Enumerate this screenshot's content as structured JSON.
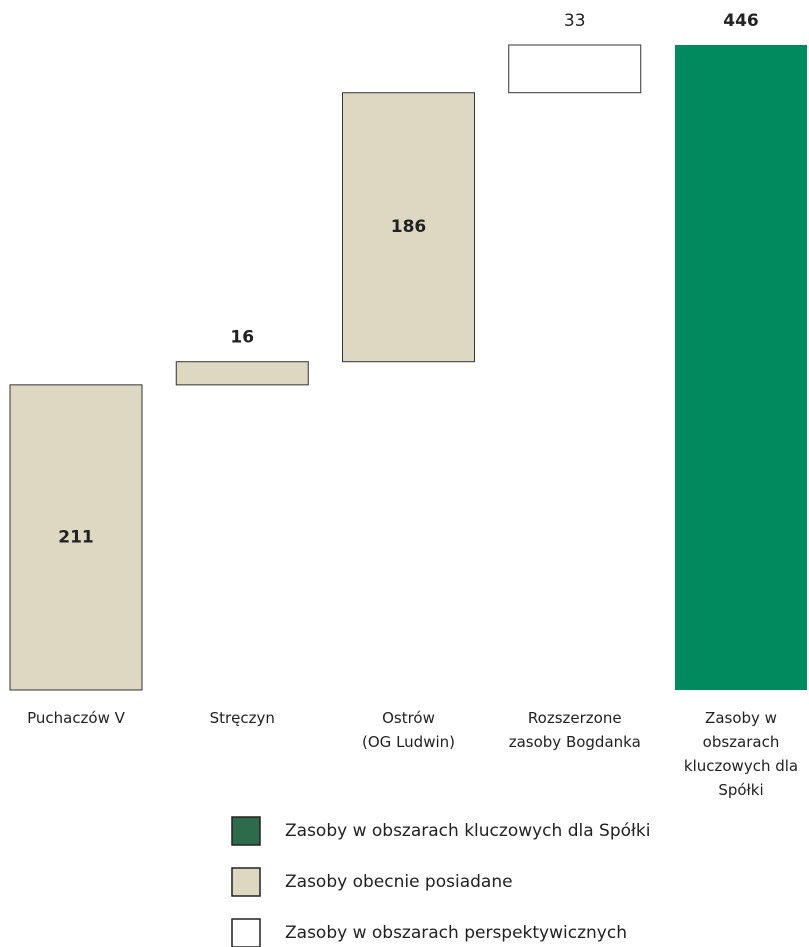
{
  "chart_data": {
    "type": "waterfall",
    "categories": [
      "Puchaczów V",
      "Stręczyn",
      "Ostrów\n(OG Ludwin)",
      "Rozszerzone\nzasoby Bogdanka",
      "Zasoby w\nobszarach\nkluczowych dla\nSpółki"
    ],
    "series": [
      {
        "name": "Zasoby w obszarach kluczowych dla Spółki",
        "color": "#008a5e",
        "values": [
          null,
          null,
          null,
          null,
          446
        ]
      },
      {
        "name": "Zasoby obecnie posiadane",
        "color": "#ddd8c2",
        "values": [
          211,
          16,
          186,
          null,
          null
        ]
      },
      {
        "name": "Zasoby w obszarach perspektywicznych",
        "color": "#ffffff",
        "values": [
          null,
          null,
          null,
          33,
          null
        ]
      }
    ],
    "ylim": [
      0,
      446
    ]
  }
}
